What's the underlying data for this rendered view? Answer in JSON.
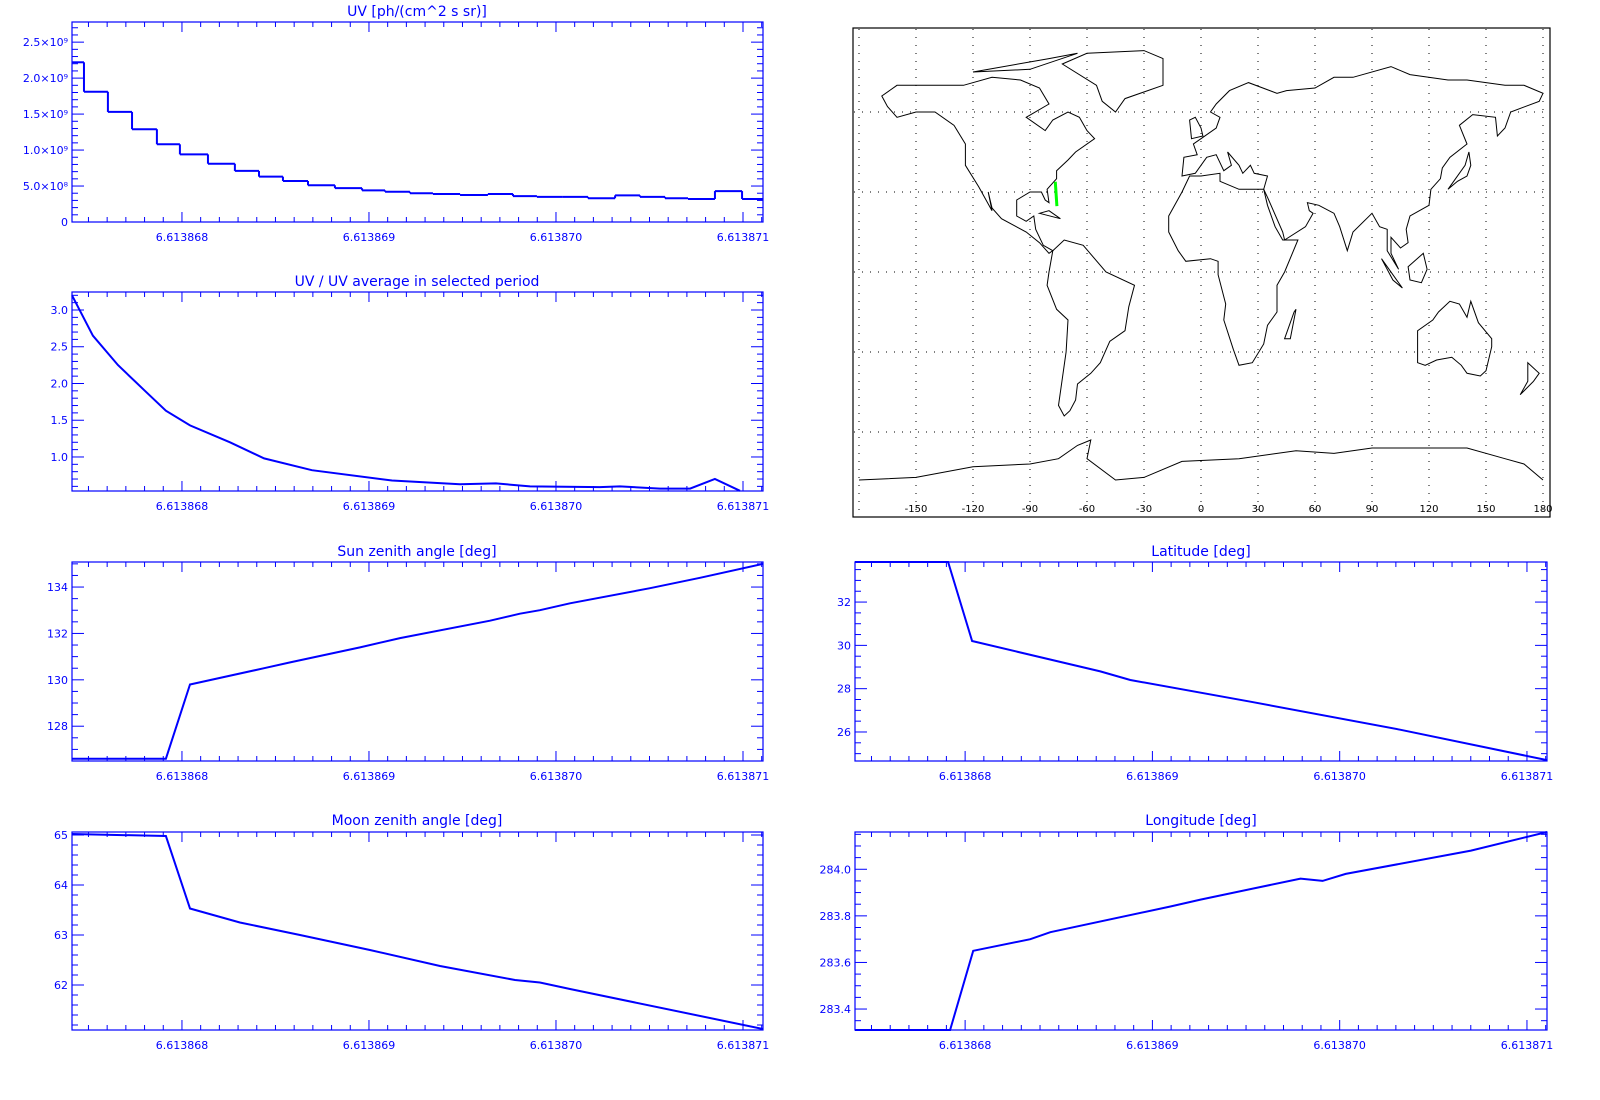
{
  "colors": {
    "axes": "#0000ff",
    "line": "#0000ff",
    "map": "#000000",
    "track": "#00ff00"
  },
  "chart_data": [
    {
      "id": "uv",
      "type": "histogram",
      "title": "UV [ph/(cm^2 s sr)]",
      "xlim": [
        6.613867412,
        6.613871107
      ],
      "ylim": [
        0,
        2780000000.0
      ],
      "xticks": [
        6.613868,
        6.613869,
        6.61387,
        6.613871
      ],
      "xtick_labels": [
        "6.613868",
        "6.613869",
        "6.613870",
        "6.613871"
      ],
      "yticks": [
        0,
        500000000.0,
        1000000000.0,
        1500000000.0,
        2000000000.0,
        2500000000.0
      ],
      "ytick_labels": [
        "0",
        "5.0×10⁸",
        "1.0×10⁹",
        "1.5×10⁹",
        "2.0×10⁹",
        "2.5×10⁹"
      ],
      "bin_edges": [
        6.613867412,
        6.613867476,
        6.613867604,
        6.613867733,
        6.613867866,
        6.613867989,
        6.613868139,
        6.613868283,
        6.613868412,
        6.61386854,
        6.613868674,
        6.613868818,
        6.613868963,
        6.613869086,
        6.613869219,
        6.613869342,
        6.613869487,
        6.613869636,
        6.61386977,
        6.613869898,
        6.613870037,
        6.613870171,
        6.613870316,
        6.613870449,
        6.613870583,
        6.613870706,
        6.61387085,
        6.613870995,
        6.613871107
      ],
      "values": [
        2220000000.0,
        1810000000.0,
        1530000000.0,
        1290000000.0,
        1080000000.0,
        940000000.0,
        810000000.0,
        710000000.0,
        630000000.0,
        570000000.0,
        510000000.0,
        470000000.0,
        440000000.0,
        420000000.0,
        400000000.0,
        390000000.0,
        375000000.0,
        390000000.0,
        360000000.0,
        350000000.0,
        350000000.0,
        330000000.0,
        370000000.0,
        350000000.0,
        330000000.0,
        320000000.0,
        430000000.0,
        320000000.0
      ]
    },
    {
      "id": "ratio",
      "type": "line",
      "title": "UV / UV average in selected period",
      "xlim": [
        6.613867412,
        6.613871107
      ],
      "ylim": [
        0.537,
        3.245
      ],
      "xticks": [
        6.613868,
        6.613869,
        6.61387,
        6.613871
      ],
      "xtick_labels": [
        "6.613868",
        "6.613869",
        "6.613870",
        "6.613871"
      ],
      "yticks": [
        1.0,
        1.5,
        2.0,
        2.5,
        3.0
      ],
      "ytick_labels": [
        "1.0",
        "1.5",
        "2.0",
        "2.5",
        "3.0"
      ],
      "points": [
        [
          6.613867412,
          3.2
        ],
        [
          6.613867524,
          2.65
        ],
        [
          6.613867658,
          2.25
        ],
        [
          6.613867802,
          1.9
        ],
        [
          6.613867914,
          1.63
        ],
        [
          6.613868043,
          1.43
        ],
        [
          6.613868257,
          1.2
        ],
        [
          6.613868439,
          0.98
        ],
        [
          6.613868695,
          0.82
        ],
        [
          6.613869123,
          0.68
        ],
        [
          6.613869487,
          0.63
        ],
        [
          6.613869679,
          0.64
        ],
        [
          6.613869861,
          0.6
        ],
        [
          6.613870235,
          0.59
        ],
        [
          6.613870342,
          0.6
        ],
        [
          6.613870556,
          0.57
        ],
        [
          6.613870717,
          0.57
        ],
        [
          6.61387085,
          0.7
        ],
        [
          6.613870984,
          0.54
        ]
      ]
    },
    {
      "id": "sun",
      "type": "line",
      "title": "Sun zenith angle [deg]",
      "xlim": [
        6.613867412,
        6.613871107
      ],
      "ylim": [
        126.5,
        135.08
      ],
      "xticks": [
        6.613868,
        6.613869,
        6.61387,
        6.613871
      ],
      "xtick_labels": [
        "6.613868",
        "6.613869",
        "6.613870",
        "6.613871"
      ],
      "yticks": [
        128,
        130,
        132,
        134
      ],
      "ytick_labels": [
        "128",
        "130",
        "132",
        "134"
      ],
      "points": [
        [
          6.613867412,
          126.6
        ],
        [
          6.613867914,
          126.6
        ],
        [
          6.613868043,
          129.8
        ],
        [
          6.613868439,
          130.5
        ],
        [
          6.613868578,
          130.75
        ],
        [
          6.613868952,
          131.4
        ],
        [
          6.613869166,
          131.8
        ],
        [
          6.613869647,
          132.55
        ],
        [
          6.613869807,
          132.85
        ],
        [
          6.613869914,
          133.0
        ],
        [
          6.613870075,
          133.3
        ],
        [
          6.613870503,
          133.95
        ],
        [
          6.61387077,
          134.4
        ],
        [
          6.613871107,
          135.0
        ]
      ]
    },
    {
      "id": "moon",
      "type": "line",
      "title": "Moon zenith angle [deg]",
      "xlim": [
        6.613867412,
        6.613871107
      ],
      "ylim": [
        61.1,
        65.06
      ],
      "xticks": [
        6.613868,
        6.613869,
        6.61387,
        6.613871
      ],
      "xtick_labels": [
        "6.613868",
        "6.613869",
        "6.613870",
        "6.613871"
      ],
      "yticks": [
        62,
        63,
        64,
        65
      ],
      "ytick_labels": [
        "62",
        "63",
        "64",
        "65"
      ],
      "points": [
        [
          6.613867412,
          65.02
        ],
        [
          6.613867914,
          64.98
        ],
        [
          6.613868043,
          63.53
        ],
        [
          6.61386831,
          63.25
        ],
        [
          6.613868631,
          63.0
        ],
        [
          6.613869005,
          62.7
        ],
        [
          6.61386938,
          62.38
        ],
        [
          6.613869781,
          62.1
        ],
        [
          6.613869914,
          62.05
        ],
        [
          6.613870075,
          61.92
        ],
        [
          6.613871107,
          61.12
        ]
      ]
    },
    {
      "id": "lat",
      "type": "line",
      "title": "Latitude [deg]",
      "xlim": [
        6.613867412,
        6.613871107
      ],
      "ylim": [
        24.66,
        33.85
      ],
      "xticks": [
        6.613868,
        6.613869,
        6.61387,
        6.613871
      ],
      "xtick_labels": [
        "6.613868",
        "6.613869",
        "6.613870",
        "6.613871"
      ],
      "yticks": [
        26,
        28,
        30,
        32
      ],
      "ytick_labels": [
        "26",
        "28",
        "30",
        "32"
      ],
      "points": [
        [
          6.613867412,
          33.85
        ],
        [
          6.613867909,
          33.85
        ],
        [
          6.613868037,
          30.2
        ],
        [
          6.613868722,
          28.8
        ],
        [
          6.613868882,
          28.4
        ],
        [
          6.613869524,
          27.4
        ],
        [
          6.613870326,
          26.1
        ],
        [
          6.613871107,
          24.7
        ]
      ]
    },
    {
      "id": "lon",
      "type": "line",
      "title": "Longitude [deg]",
      "xlim": [
        6.613867412,
        6.613871107
      ],
      "ylim": [
        283.31,
        284.16
      ],
      "xticks": [
        6.613868,
        6.613869,
        6.61387,
        6.613871
      ],
      "xtick_labels": [
        "6.613868",
        "6.613869",
        "6.613870",
        "6.613871"
      ],
      "yticks": [
        283.4,
        283.6,
        283.8,
        284.0
      ],
      "ytick_labels": [
        "283.4",
        "283.6",
        "283.8",
        "284.0"
      ],
      "points": [
        [
          6.613867412,
          283.31
        ],
        [
          6.61386792,
          283.31
        ],
        [
          6.613868043,
          283.65
        ],
        [
          6.613868348,
          283.7
        ],
        [
          6.613868455,
          283.73
        ],
        [
          6.613869096,
          283.84
        ],
        [
          6.613869257,
          283.87
        ],
        [
          6.613869791,
          283.96
        ],
        [
          6.613869909,
          283.95
        ],
        [
          6.613870032,
          283.98
        ],
        [
          6.613870701,
          284.08
        ],
        [
          6.613871107,
          284.16
        ]
      ]
    },
    {
      "id": "map",
      "type": "map",
      "projection": "cylindrical",
      "lon_ticks": [
        -150,
        -120,
        -90,
        -60,
        -30,
        0,
        30,
        60,
        90,
        120,
        150,
        180
      ],
      "lon_tick_labels": [
        "-150",
        "-120",
        "-90",
        "-60",
        "-30",
        "0",
        "30",
        "60",
        "90",
        "120",
        "150",
        "180"
      ],
      "lat_gridlines": [
        -60,
        -30,
        0,
        30,
        60
      ],
      "grid": true,
      "track": {
        "lat": [
          33.85,
          24.7
        ],
        "lon": [
          -76.69,
          -75.84
        ]
      }
    }
  ]
}
